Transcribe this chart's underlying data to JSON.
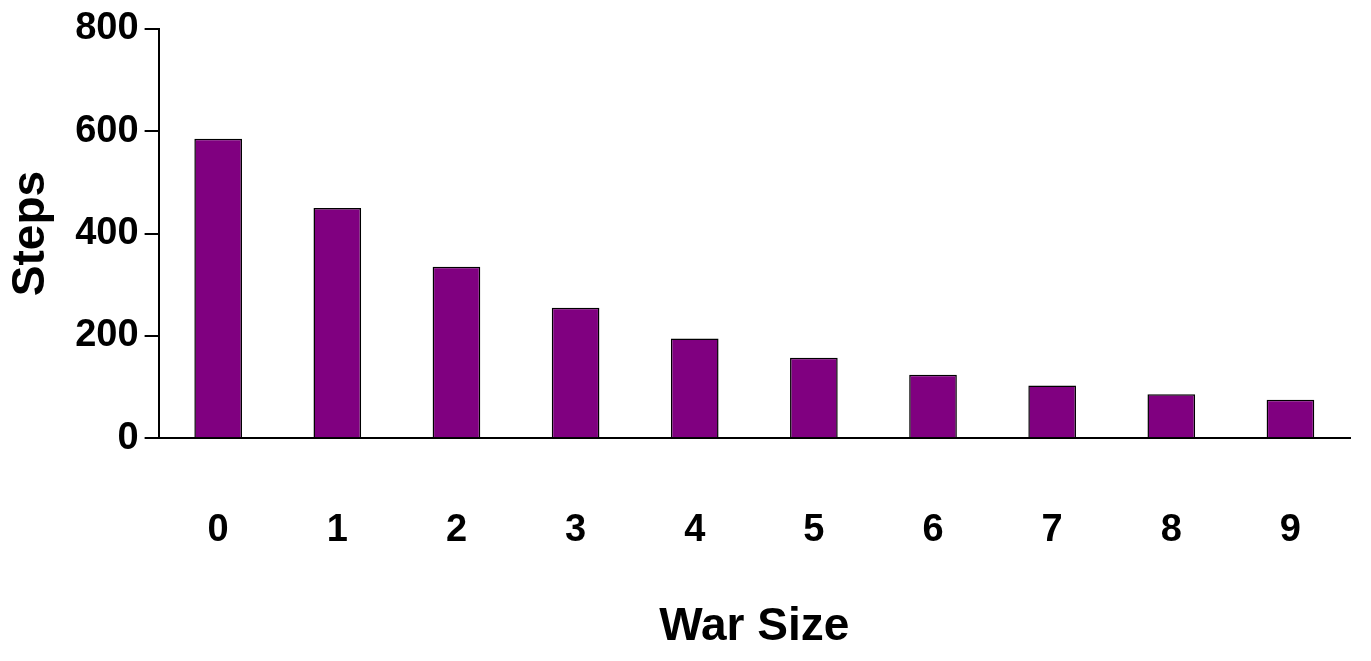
{
  "chart_data": {
    "type": "bar",
    "xlabel": "War Size",
    "ylabel": "Steps",
    "categories": [
      "0",
      "1",
      "2",
      "3",
      "4",
      "5",
      "6",
      "7",
      "8",
      "9"
    ],
    "values": [
      585,
      450,
      335,
      255,
      195,
      157,
      124,
      103,
      86,
      75
    ],
    "color": "#800080",
    "ylim": [
      0,
      800
    ],
    "yticks": [
      0,
      200,
      400,
      600,
      800
    ],
    "grid": false,
    "legend": false
  }
}
